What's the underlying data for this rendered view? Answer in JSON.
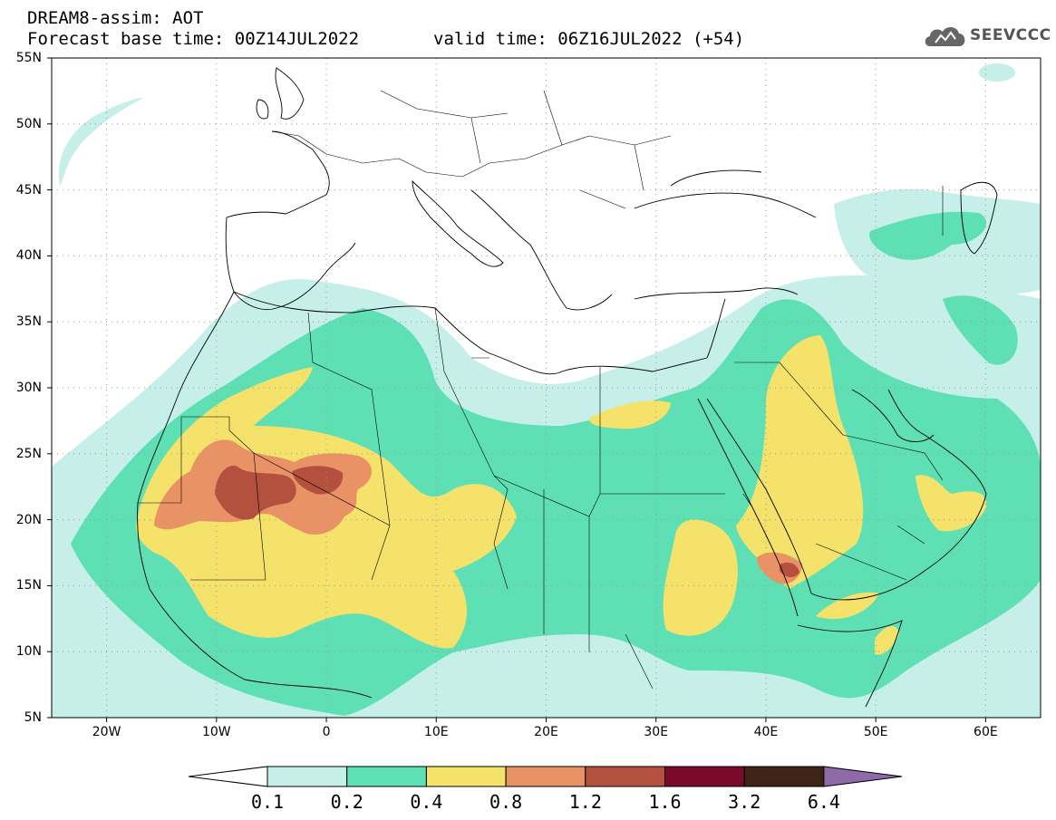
{
  "header": {
    "title_line1": "DREAM8-assim: AOT",
    "title_line2": "Forecast base time: 00Z14JUL2022",
    "valid_time": "valid time: 06Z16JUL2022 (+54)"
  },
  "logo": {
    "text": "SEEVCCC",
    "icon": "cloud-icon"
  },
  "map": {
    "projection": "lat-lon",
    "lon_range": [
      -25,
      65
    ],
    "lat_range": [
      5,
      55
    ],
    "gridlines": "dotted",
    "lat_labels": [
      "55N",
      "50N",
      "45N",
      "40N",
      "35N",
      "30N",
      "25N",
      "20N",
      "15N",
      "10N",
      "5N"
    ],
    "lon_labels": [
      "20W",
      "10W",
      "0",
      "10E",
      "20E",
      "30E",
      "40E",
      "50E",
      "60E"
    ]
  },
  "colorbar": {
    "labels": [
      "0.1",
      "0.2",
      "0.4",
      "0.8",
      "1.2",
      "1.6",
      "3.2",
      "6.4"
    ],
    "colors": [
      "#c5efe8",
      "#5ee0b4",
      "#f5e26a",
      "#e99265",
      "#b4503e",
      "#7a0a2a",
      "#3d2414"
    ],
    "under_color": "#ffffff",
    "over_color": "#8f6aa8"
  }
}
